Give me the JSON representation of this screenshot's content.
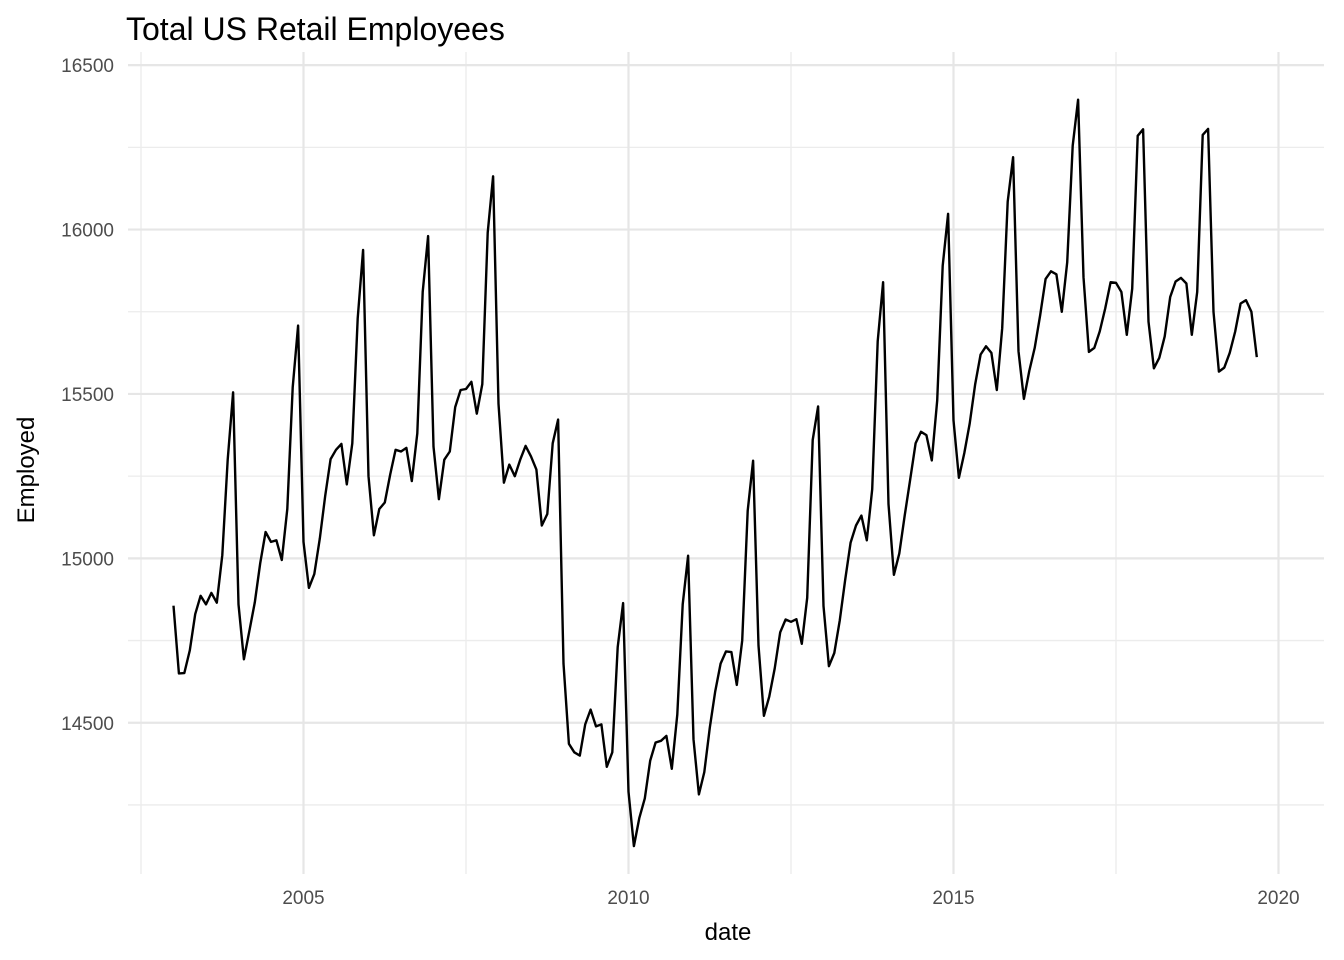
{
  "chart_data": {
    "type": "line",
    "title": "Total US Retail Employees",
    "xlabel": "date",
    "ylabel": "Employed",
    "xlim": [
      2002.3,
      2020.7
    ],
    "ylim": [
      14040,
      16540
    ],
    "x_ticks": [
      2005,
      2010,
      2015,
      2020
    ],
    "x_minor_ticks": [
      2002.5,
      2007.5,
      2012.5,
      2017.5
    ],
    "y_ticks": [
      14500,
      15000,
      15500,
      16000,
      16500
    ],
    "y_minor_ticks": [
      14250,
      14750,
      15250,
      15750,
      16250
    ],
    "grid": true,
    "series": [
      {
        "start_year": 2003,
        "start_month": 1,
        "values": [
          14856,
          14650,
          14651,
          14720,
          14830,
          14886,
          14860,
          14895,
          14865,
          15010,
          15300,
          15505,
          14860,
          14693,
          14778,
          14866,
          14985,
          15080,
          15050,
          15055,
          14995,
          15150,
          15520,
          15708,
          15050,
          14910,
          14952,
          15060,
          15190,
          15302,
          15330,
          15348,
          15225,
          15350,
          15730,
          15938,
          15250,
          15070,
          15150,
          15170,
          15255,
          15330,
          15325,
          15336,
          15235,
          15380,
          15810,
          15980,
          15340,
          15180,
          15300,
          15325,
          15460,
          15512,
          15515,
          15537,
          15440,
          15530,
          15990,
          16162,
          15470,
          15230,
          15285,
          15250,
          15300,
          15342,
          15310,
          15270,
          15100,
          15135,
          15350,
          15422,
          14680,
          14436,
          14410,
          14400,
          14495,
          14540,
          14489,
          14495,
          14366,
          14410,
          14730,
          14864,
          14290,
          14125,
          14210,
          14270,
          14385,
          14440,
          14445,
          14460,
          14360,
          14525,
          14860,
          15008,
          14450,
          14282,
          14350,
          14485,
          14595,
          14680,
          14717,
          14715,
          14615,
          14750,
          15145,
          15297,
          14735,
          14521,
          14580,
          14665,
          14775,
          14814,
          14807,
          14815,
          14740,
          14880,
          15360,
          15462,
          14855,
          14672,
          14712,
          14810,
          14935,
          15048,
          15100,
          15130,
          15055,
          15210,
          15660,
          15840,
          15165,
          14950,
          15015,
          15130,
          15240,
          15350,
          15385,
          15375,
          15298,
          15480,
          15890,
          16048,
          15420,
          15245,
          15320,
          15410,
          15530,
          15620,
          15645,
          15625,
          15512,
          15700,
          16085,
          16220,
          15630,
          15485,
          15570,
          15640,
          15740,
          15850,
          15873,
          15864,
          15750,
          15900,
          16255,
          16395,
          15855,
          15628,
          15640,
          15690,
          15760,
          15840,
          15838,
          15810,
          15680,
          15820,
          16285,
          16305,
          15720,
          15578,
          15610,
          15675,
          15795,
          15842,
          15853,
          15836,
          15680,
          15810,
          16288,
          16306,
          15750,
          15568,
          15580,
          15625,
          15690,
          15775,
          15785,
          15750,
          15612
        ]
      }
    ]
  }
}
